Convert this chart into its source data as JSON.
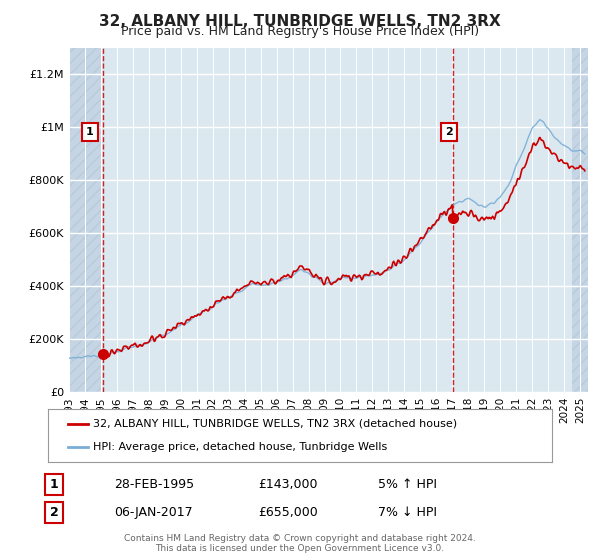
{
  "title": "32, ALBANY HILL, TUNBRIDGE WELLS, TN2 3RX",
  "subtitle": "Price paid vs. HM Land Registry's House Price Index (HPI)",
  "legend_line1": "32, ALBANY HILL, TUNBRIDGE WELLS, TN2 3RX (detached house)",
  "legend_line2": "HPI: Average price, detached house, Tunbridge Wells",
  "annotation1_label": "1",
  "annotation1_date": "28-FEB-1995",
  "annotation1_price": "£143,000",
  "annotation1_hpi": "5% ↑ HPI",
  "annotation2_label": "2",
  "annotation2_date": "06-JAN-2017",
  "annotation2_price": "£655,000",
  "annotation2_hpi": "7% ↓ HPI",
  "footer": "Contains HM Land Registry data © Crown copyright and database right 2024.\nThis data is licensed under the Open Government Licence v3.0.",
  "sale1_year": 1995.15,
  "sale1_price": 143000,
  "sale2_year": 2017.02,
  "sale2_price": 655000,
  "price_line_color": "#cc0000",
  "hpi_line_color": "#7aaed6",
  "ylim_min": 0,
  "ylim_max": 1300000,
  "xlim_min": 1993,
  "xlim_max": 2025.5,
  "background_plot": "#dce8f0",
  "background_hatch": "#c5d5e5",
  "background_fig": "#ffffff",
  "grid_color": "#ffffff",
  "yticks": [
    0,
    200000,
    400000,
    600000,
    800000,
    1000000,
    1200000
  ],
  "ytick_labels": [
    "£0",
    "£200K",
    "£400K",
    "£600K",
    "£800K",
    "£1M",
    "£1.2M"
  ],
  "xticks": [
    1993,
    1994,
    1995,
    1996,
    1997,
    1998,
    1999,
    2000,
    2001,
    2002,
    2003,
    2004,
    2005,
    2006,
    2007,
    2008,
    2009,
    2010,
    2011,
    2012,
    2013,
    2014,
    2015,
    2016,
    2017,
    2018,
    2019,
    2020,
    2021,
    2022,
    2023,
    2024,
    2025
  ]
}
